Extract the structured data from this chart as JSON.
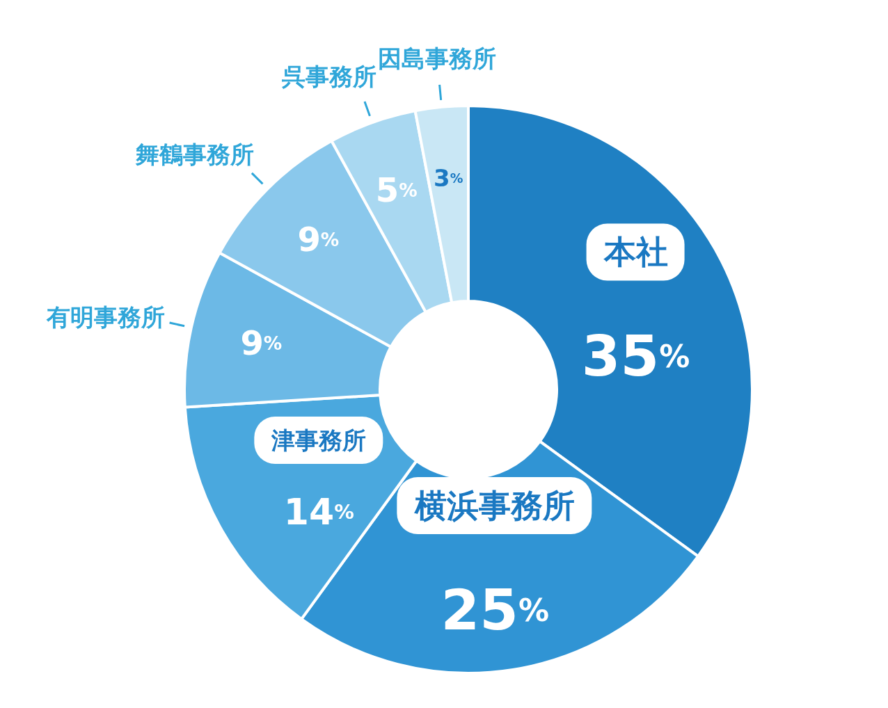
{
  "chart_data": {
    "type": "donut",
    "categories": [
      "本社",
      "横浜事務所",
      "津事務所",
      "有明事務所",
      "舞鶴事務所",
      "呉事務所",
      "因島事務所"
    ],
    "values": [
      35,
      25,
      14,
      9,
      9,
      5,
      3
    ],
    "colors": [
      "#1f80c3",
      "#3094d4",
      "#4aa8de",
      "#6cb9e6",
      "#8ac8ec",
      "#a9d8f1",
      "#c9e7f5"
    ],
    "value_labels": [
      "35%",
      "25%",
      "14%",
      "9%",
      "9%",
      "5%",
      "3%"
    ],
    "legend": false
  }
}
